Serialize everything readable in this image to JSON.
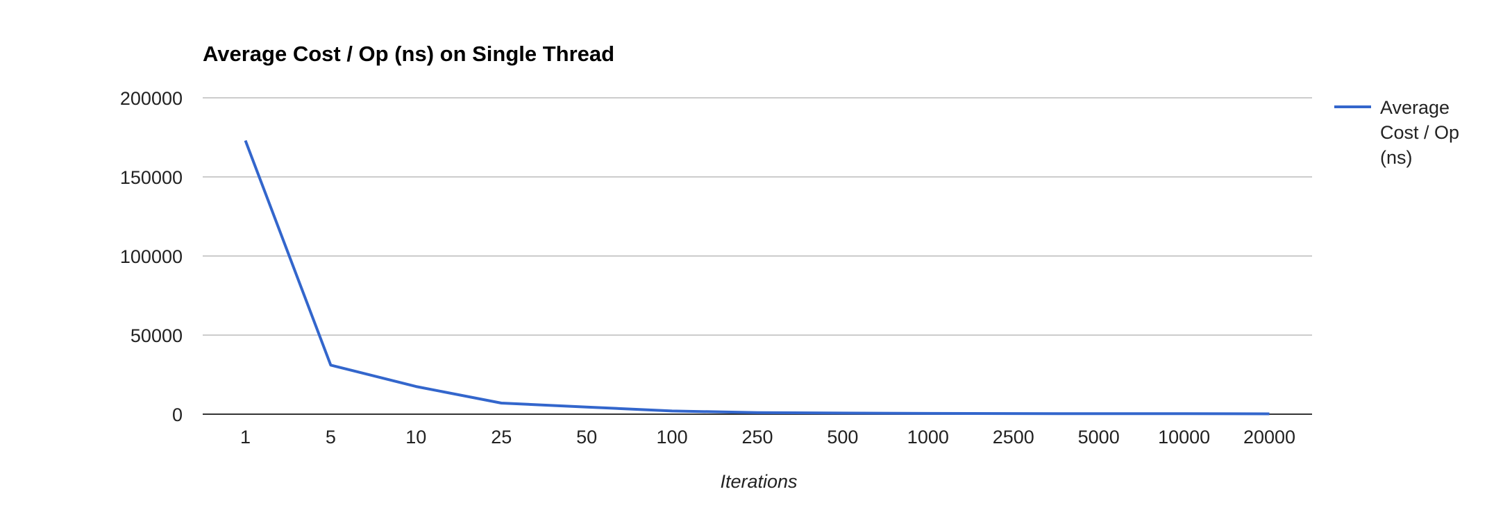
{
  "chart_data": {
    "type": "line",
    "title": "Average Cost / Op (ns) on Single Thread",
    "xlabel": "Iterations",
    "ylabel": "",
    "categories": [
      "1",
      "5",
      "10",
      "25",
      "50",
      "100",
      "250",
      "500",
      "1000",
      "2500",
      "5000",
      "10000",
      "20000"
    ],
    "series": [
      {
        "name": "Average Cost / Op (ns)",
        "values": [
          173000,
          31000,
          17500,
          7000,
          4500,
          2000,
          1000,
          700,
          500,
          400,
          300,
          300,
          200
        ]
      }
    ],
    "ylim": [
      0,
      200000
    ],
    "yticks": [
      "0",
      "50000",
      "100000",
      "150000",
      "200000"
    ],
    "grid": true,
    "legend_position": "right",
    "colors": {
      "series": "#3366cc",
      "grid": "#cccccc",
      "axis": "#333333"
    }
  },
  "legend": {
    "lines": [
      "Average",
      "Cost / Op",
      "(ns)"
    ]
  }
}
